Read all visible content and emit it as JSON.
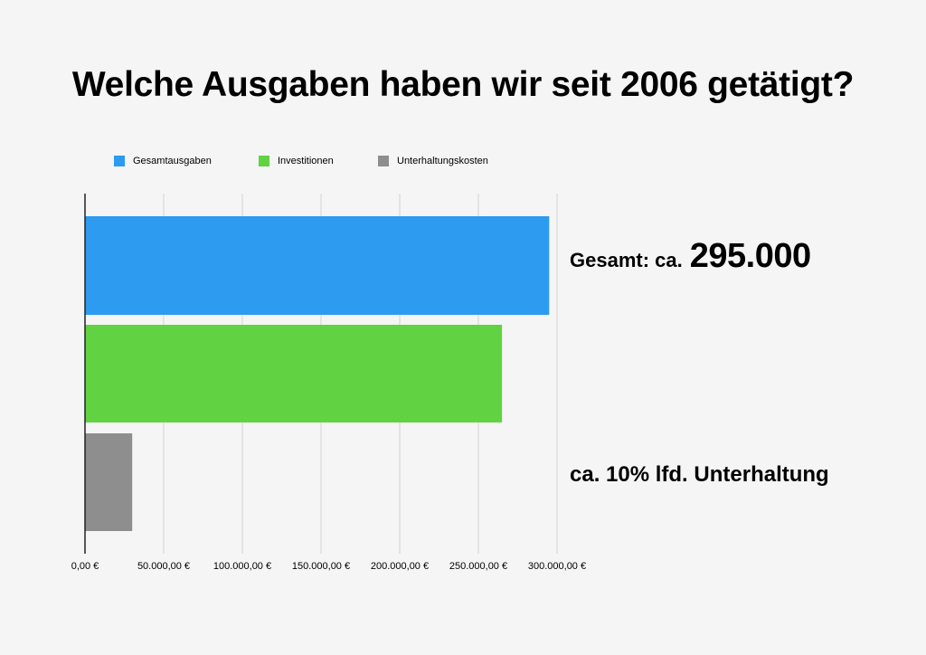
{
  "chart_data": {
    "type": "bar",
    "orientation": "horizontal",
    "title": "Welche Ausgaben haben wir seit 2006 getätigt?",
    "series": [
      {
        "name": "Gesamtausgaben",
        "value": 295000,
        "color": "#2d9bf0"
      },
      {
        "name": "Investitionen",
        "value": 265000,
        "color": "#61d241"
      },
      {
        "name": "Unterhaltungskosten",
        "value": 30000,
        "color": "#8e8e8e"
      }
    ],
    "xlim": [
      0,
      300000
    ],
    "xticks": [
      0,
      50000,
      100000,
      150000,
      200000,
      250000,
      300000
    ],
    "xtick_labels": [
      "0,00 €",
      "50.000,00 €",
      "100.000,00 €",
      "150.000,00 €",
      "200.000,00 €",
      "250.000,00 €",
      "300.000,00 €"
    ],
    "grid": true,
    "legend_position": "top",
    "annotations": {
      "total_prefix": "Gesamt: ca.",
      "total_amount": "295.000",
      "maintenance": "ca. 10% lfd. Unterhaltung"
    }
  }
}
